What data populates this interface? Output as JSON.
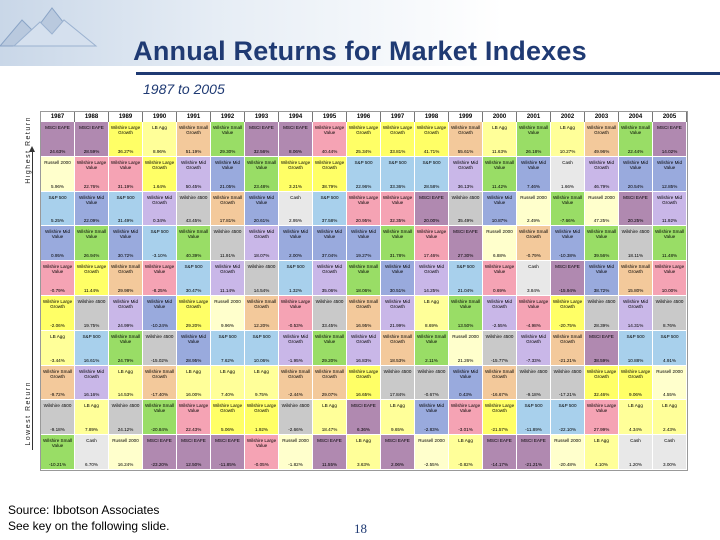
{
  "slide": {
    "title": "Annual Returns for Market Indexes",
    "subtitle": "1987 to 2005",
    "axis_top_label": "Highest Return",
    "axis_bottom_label": "Lowest Return",
    "source_line1": "Source: Ibbotson Associates",
    "source_line2": "See key on the following slide.",
    "page_number": "18"
  },
  "colors": {
    "header_blue": "#1f3a73",
    "Wilshire Large Value": "#f5a3b4",
    "Wilshire Large Growth": "#ffff66",
    "Wilshire Small Value": "#99dd66",
    "Wilshire Small Growth": "#f3c99b",
    "Wilshire Mid Value": "#99aadd",
    "Wilshire Mid Growth": "#c9b7e8",
    "Wilshire 4500": "#c9c9c9",
    "S&P 500": "#a8d0ec",
    "LB Agg": "#ffff99",
    "MSCI EAFE": "#b089b0",
    "Russell 2000": "#ffffcc",
    "Cash": "#e8e8e8"
  },
  "years": [
    "1987",
    "1988",
    "1989",
    "1990",
    "1991",
    "1992",
    "1993",
    "1994",
    "1995",
    "1996",
    "1997",
    "1998",
    "1999",
    "2000",
    "2001",
    "2002",
    "2003",
    "2004",
    "2005"
  ],
  "grid": [
    [
      {
        "name": "MSCI EAFE",
        "ret": "24.63%"
      },
      {
        "name": "MSCI EAFE",
        "ret": "28.59%"
      },
      {
        "name": "Wilshire Large Growth",
        "ret": "36.27%"
      },
      {
        "name": "LB Agg",
        "ret": "8.96%"
      },
      {
        "name": "Wilshire Small Growth",
        "ret": "51.19%"
      },
      {
        "name": "Wilshire Small Value",
        "ret": "29.30%"
      },
      {
        "name": "MSCI EAFE",
        "ret": "32.56%"
      },
      {
        "name": "MSCI EAFE",
        "ret": "8.06%"
      },
      {
        "name": "Wilshire Large Value",
        "ret": "40.44%"
      },
      {
        "name": "Wilshire Large Growth",
        "ret": "25.34%"
      },
      {
        "name": "Wilshire Large Growth",
        "ret": "33.81%"
      },
      {
        "name": "Wilshire Large Growth",
        "ret": "41.71%"
      },
      {
        "name": "Wilshire Small Growth",
        "ret": "55.61%"
      },
      {
        "name": "LB Agg",
        "ret": "11.63%"
      },
      {
        "name": "Wilshire Small Value",
        "ret": "26.18%"
      },
      {
        "name": "LB Agg",
        "ret": "10.27%"
      },
      {
        "name": "Wilshire Small Growth",
        "ret": "49.96%"
      },
      {
        "name": "Wilshire Small Value",
        "ret": "22.44%"
      },
      {
        "name": "MSCI EAFE",
        "ret": "14.02%"
      }
    ],
    [
      {
        "name": "Russell 2000",
        "ret": "5.96%"
      },
      {
        "name": "Wilshire Large Value",
        "ret": "22.76%"
      },
      {
        "name": "Wilshire Large Value",
        "ret": "31.19%"
      },
      {
        "name": "Wilshire Large Growth",
        "ret": "1.64%"
      },
      {
        "name": "Wilshire Mid Growth",
        "ret": "50.45%"
      },
      {
        "name": "Wilshire Mid Value",
        "ret": "21.05%"
      },
      {
        "name": "Wilshire Small Value",
        "ret": "23.48%"
      },
      {
        "name": "Wilshire Large Growth",
        "ret": "3.21%"
      },
      {
        "name": "Wilshire Large Growth",
        "ret": "38.79%"
      },
      {
        "name": "S&P 500",
        "ret": "22.96%"
      },
      {
        "name": "S&P 500",
        "ret": "33.36%"
      },
      {
        "name": "S&P 500",
        "ret": "28.58%"
      },
      {
        "name": "Wilshire Mid Growth",
        "ret": "36.13%"
      },
      {
        "name": "Wilshire Small Value",
        "ret": "11.42%"
      },
      {
        "name": "Wilshire Mid Value",
        "ret": "7.46%"
      },
      {
        "name": "Cash",
        "ret": "1.66%"
      },
      {
        "name": "Wilshire Mid Growth",
        "ret": "46.79%"
      },
      {
        "name": "Wilshire Mid Value",
        "ret": "20.54%"
      },
      {
        "name": "Wilshire Mid Value",
        "ret": "12.85%"
      }
    ],
    [
      {
        "name": "S&P 500",
        "ret": "5.25%"
      },
      {
        "name": "Wilshire Mid Value",
        "ret": "22.09%"
      },
      {
        "name": "S&P 500",
        "ret": "31.49%"
      },
      {
        "name": "Wilshire Mid Growth",
        "ret": "0.34%"
      },
      {
        "name": "Wilshire 4500",
        "ret": "43.45%"
      },
      {
        "name": "Wilshire Small Growth",
        "ret": "17.81%"
      },
      {
        "name": "Wilshire Mid Value",
        "ret": "20.61%"
      },
      {
        "name": "Cash",
        "ret": "2.95%"
      },
      {
        "name": "S&P 500",
        "ret": "37.58%"
      },
      {
        "name": "Wilshire Large Value",
        "ret": "20.95%"
      },
      {
        "name": "Wilshire Large Value",
        "ret": "32.35%"
      },
      {
        "name": "MSCI EAFE",
        "ret": "20.00%"
      },
      {
        "name": "Wilshire 4500",
        "ret": "35.49%"
      },
      {
        "name": "Wilshire Mid Value",
        "ret": "10.87%"
      },
      {
        "name": "Russell 2000",
        "ret": "2.49%"
      },
      {
        "name": "Wilshire Small Value",
        "ret": "-7.66%"
      },
      {
        "name": "Russell 2000",
        "ret": "47.25%"
      },
      {
        "name": "MSCI EAFE",
        "ret": "20.25%"
      },
      {
        "name": "Wilshire Mid Growth",
        "ret": "11.92%"
      }
    ],
    [
      {
        "name": "Wilshire Mid Value",
        "ret": "0.95%"
      },
      {
        "name": "Wilshire Small Value",
        "ret": "26.94%"
      },
      {
        "name": "Wilshire Mid Value",
        "ret": "30.72%"
      },
      {
        "name": "S&P 500",
        "ret": "-3.10%"
      },
      {
        "name": "Wilshire Small Value",
        "ret": "40.39%"
      },
      {
        "name": "Wilshire 4500",
        "ret": "11.91%"
      },
      {
        "name": "Wilshire Mid Growth",
        "ret": "18.07%"
      },
      {
        "name": "Wilshire Mid Value",
        "ret": "2.00%"
      },
      {
        "name": "Wilshire Mid Value",
        "ret": "37.04%"
      },
      {
        "name": "Wilshire Mid Value",
        "ret": "19.27%"
      },
      {
        "name": "Wilshire Small Value",
        "ret": "31.78%"
      },
      {
        "name": "Wilshire Large Value",
        "ret": "17.46%"
      },
      {
        "name": "MSCI EAFE",
        "ret": "27.30%"
      },
      {
        "name": "Russell 2000",
        "ret": "6.88%"
      },
      {
        "name": "Wilshire Small Growth",
        "ret": "-0.79%"
      },
      {
        "name": "Wilshire Mid Value",
        "ret": "-10.38%"
      },
      {
        "name": "Wilshire Small Value",
        "ret": "39.56%"
      },
      {
        "name": "Wilshire 4500",
        "ret": "18.11%"
      },
      {
        "name": "Wilshire Small Value",
        "ret": "11.48%"
      }
    ],
    [
      {
        "name": "Wilshire Large Value",
        "ret": "-0.79%"
      },
      {
        "name": "Wilshire Large Growth",
        "ret": "11.44%"
      },
      {
        "name": "Wilshire Small Growth",
        "ret": "29.98%"
      },
      {
        "name": "Wilshire Large Value",
        "ret": "-8.25%"
      },
      {
        "name": "S&P 500",
        "ret": "30.47%"
      },
      {
        "name": "Wilshire Mid Growth",
        "ret": "11.14%"
      },
      {
        "name": "Wilshire 4500",
        "ret": "14.54%"
      },
      {
        "name": "S&P 500",
        "ret": "1.32%"
      },
      {
        "name": "Wilshire Mid Growth",
        "ret": "35.06%"
      },
      {
        "name": "Wilshire Small Value",
        "ret": "18.06%"
      },
      {
        "name": "Wilshire Mid Value",
        "ret": "30.51%"
      },
      {
        "name": "Wilshire Mid Growth",
        "ret": "14.25%"
      },
      {
        "name": "S&P 500",
        "ret": "21.04%"
      },
      {
        "name": "Wilshire Large Value",
        "ret": "0.69%"
      },
      {
        "name": "Cash",
        "ret": "3.84%"
      },
      {
        "name": "MSCI EAFE",
        "ret": "-15.94%"
      },
      {
        "name": "Wilshire Mid Value",
        "ret": "38.72%"
      },
      {
        "name": "Wilshire Small Growth",
        "ret": "15.80%"
      },
      {
        "name": "Wilshire Large Value",
        "ret": "10.00%"
      }
    ],
    [
      {
        "name": "Wilshire Large Growth",
        "ret": "-2.06%"
      },
      {
        "name": "Wilshire 4500",
        "ret": "19.75%"
      },
      {
        "name": "Wilshire Mid Growth",
        "ret": "24.99%"
      },
      {
        "name": "Wilshire Mid Value",
        "ret": "-10.24%"
      },
      {
        "name": "Wilshire Large Growth",
        "ret": "29.20%"
      },
      {
        "name": "Russell 2000",
        "ret": "9.96%"
      },
      {
        "name": "Wilshire Small Growth",
        "ret": "12.20%"
      },
      {
        "name": "Wilshire Large Value",
        "ret": "-0.53%"
      },
      {
        "name": "Wilshire 4500",
        "ret": "33.45%"
      },
      {
        "name": "Wilshire Small Growth",
        "ret": "16.95%"
      },
      {
        "name": "Wilshire Mid Growth",
        "ret": "21.99%"
      },
      {
        "name": "LB Agg",
        "ret": "8.69%"
      },
      {
        "name": "Wilshire Small Value",
        "ret": "13.50%"
      },
      {
        "name": "Wilshire Mid Growth",
        "ret": "-2.55%"
      },
      {
        "name": "Wilshire Large Value",
        "ret": "-4.98%"
      },
      {
        "name": "Wilshire Large Growth",
        "ret": "-20.75%"
      },
      {
        "name": "Wilshire 4500",
        "ret": "28.39%"
      },
      {
        "name": "Wilshire Mid Growth",
        "ret": "14.31%"
      },
      {
        "name": "Wilshire 4500",
        "ret": "8.76%"
      }
    ],
    [
      {
        "name": "LB Agg",
        "ret": "-3.44%"
      },
      {
        "name": "S&P 500",
        "ret": "16.61%"
      },
      {
        "name": "Wilshire Small Value",
        "ret": "24.79%"
      },
      {
        "name": "Wilshire 4500",
        "ret": "-15.02%"
      },
      {
        "name": "Wilshire Mid Value",
        "ret": "28.95%"
      },
      {
        "name": "S&P 500",
        "ret": "7.62%"
      },
      {
        "name": "S&P 500",
        "ret": "10.06%"
      },
      {
        "name": "Wilshire Mid Growth",
        "ret": "-1.95%"
      },
      {
        "name": "Wilshire Small Value",
        "ret": "29.20%"
      },
      {
        "name": "Wilshire Mid Growth",
        "ret": "16.83%"
      },
      {
        "name": "Wilshire Small Growth",
        "ret": "18.53%"
      },
      {
        "name": "Wilshire Small Value",
        "ret": "2.11%"
      },
      {
        "name": "Russell 2000",
        "ret": "21.26%"
      },
      {
        "name": "Wilshire 4500",
        "ret": "-15.77%"
      },
      {
        "name": "Wilshire Mid Growth",
        "ret": "-7.33%"
      },
      {
        "name": "Wilshire Small Growth",
        "ret": "-21.21%"
      },
      {
        "name": "MSCI EAFE",
        "ret": "38.59%"
      },
      {
        "name": "S&P 500",
        "ret": "10.88%"
      },
      {
        "name": "S&P 500",
        "ret": "4.91%"
      }
    ],
    [
      {
        "name": "Wilshire Small Growth",
        "ret": "-9.72%"
      },
      {
        "name": "Wilshire Mid Growth",
        "ret": "16.16%"
      },
      {
        "name": "LB Agg",
        "ret": "14.53%"
      },
      {
        "name": "Wilshire Small Growth",
        "ret": "-17.40%"
      },
      {
        "name": "LB Agg",
        "ret": "16.00%"
      },
      {
        "name": "LB Agg",
        "ret": "7.40%"
      },
      {
        "name": "LB Agg",
        "ret": "9.75%"
      },
      {
        "name": "Wilshire Small Growth",
        "ret": "-2.44%"
      },
      {
        "name": "Wilshire Small Growth",
        "ret": "29.07%"
      },
      {
        "name": "Wilshire Large Growth",
        "ret": "16.65%"
      },
      {
        "name": "Wilshire 4500",
        "ret": "17.84%"
      },
      {
        "name": "Wilshire 4500",
        "ret": "-0.67%"
      },
      {
        "name": "Wilshire Mid Value",
        "ret": "0.43%"
      },
      {
        "name": "Wilshire Small Growth",
        "ret": "-16.67%"
      },
      {
        "name": "Wilshire 4500",
        "ret": "-9.18%"
      },
      {
        "name": "Wilshire 4500",
        "ret": "-17.21%"
      },
      {
        "name": "Wilshire Large Growth",
        "ret": "32.46%"
      },
      {
        "name": "Wilshire Large Growth",
        "ret": "9.06%"
      },
      {
        "name": "Russell 2000",
        "ret": "4.55%"
      }
    ],
    [
      {
        "name": "Wilshire 4500",
        "ret": "-9.18%"
      },
      {
        "name": "LB Agg",
        "ret": "7.89%"
      },
      {
        "name": "Wilshire 4500",
        "ret": "24.12%"
      },
      {
        "name": "Wilshire Small Value",
        "ret": "-20.84%"
      },
      {
        "name": "Wilshire Large Value",
        "ret": "22.43%"
      },
      {
        "name": "Wilshire Large Growth",
        "ret": "5.06%"
      },
      {
        "name": "Wilshire Large Growth",
        "ret": "1.92%"
      },
      {
        "name": "Wilshire 4500",
        "ret": "-2.66%"
      },
      {
        "name": "LB Agg",
        "ret": "18.47%"
      },
      {
        "name": "MSCI EAFE",
        "ret": "6.36%"
      },
      {
        "name": "LB Agg",
        "ret": "9.65%"
      },
      {
        "name": "Wilshire Mid Value",
        "ret": "-2.83%"
      },
      {
        "name": "Wilshire Large Value",
        "ret": "-3.01%"
      },
      {
        "name": "Wilshire Large Growth",
        "ret": "-21.57%"
      },
      {
        "name": "S&P 500",
        "ret": "-11.89%"
      },
      {
        "name": "S&P 500",
        "ret": "-22.10%"
      },
      {
        "name": "Wilshire Large Value",
        "ret": "27.99%"
      },
      {
        "name": "LB Agg",
        "ret": "4.34%"
      },
      {
        "name": "LB Agg",
        "ret": "2.43%"
      }
    ],
    [
      {
        "name": "Wilshire Small Value",
        "ret": "-10.21%"
      },
      {
        "name": "Cash",
        "ret": "6.70%"
      },
      {
        "name": "Russell 2000",
        "ret": "16.24%"
      },
      {
        "name": "MSCI EAFE",
        "ret": "-23.20%"
      },
      {
        "name": "MSCI EAFE",
        "ret": "12.50%"
      },
      {
        "name": "MSCI EAFE",
        "ret": "-11.85%"
      },
      {
        "name": "Wilshire Large Value",
        "ret": "-0.05%"
      },
      {
        "name": "Russell 2000",
        "ret": "-1.82%"
      },
      {
        "name": "MSCI EAFE",
        "ret": "11.55%"
      },
      {
        "name": "LB Agg",
        "ret": "3.63%"
      },
      {
        "name": "MSCI EAFE",
        "ret": "2.06%"
      },
      {
        "name": "Russell 2000",
        "ret": "-2.55%"
      },
      {
        "name": "LB Agg",
        "ret": "-0.82%"
      },
      {
        "name": "MSCI EAFE",
        "ret": "-14.17%"
      },
      {
        "name": "MSCI EAFE",
        "ret": "-21.21%"
      },
      {
        "name": "Russell 2000",
        "ret": "-20.48%"
      },
      {
        "name": "LB Agg",
        "ret": "4.10%"
      },
      {
        "name": "Cash",
        "ret": "1.20%"
      },
      {
        "name": "Cash",
        "ret": "3.00%"
      }
    ]
  ]
}
